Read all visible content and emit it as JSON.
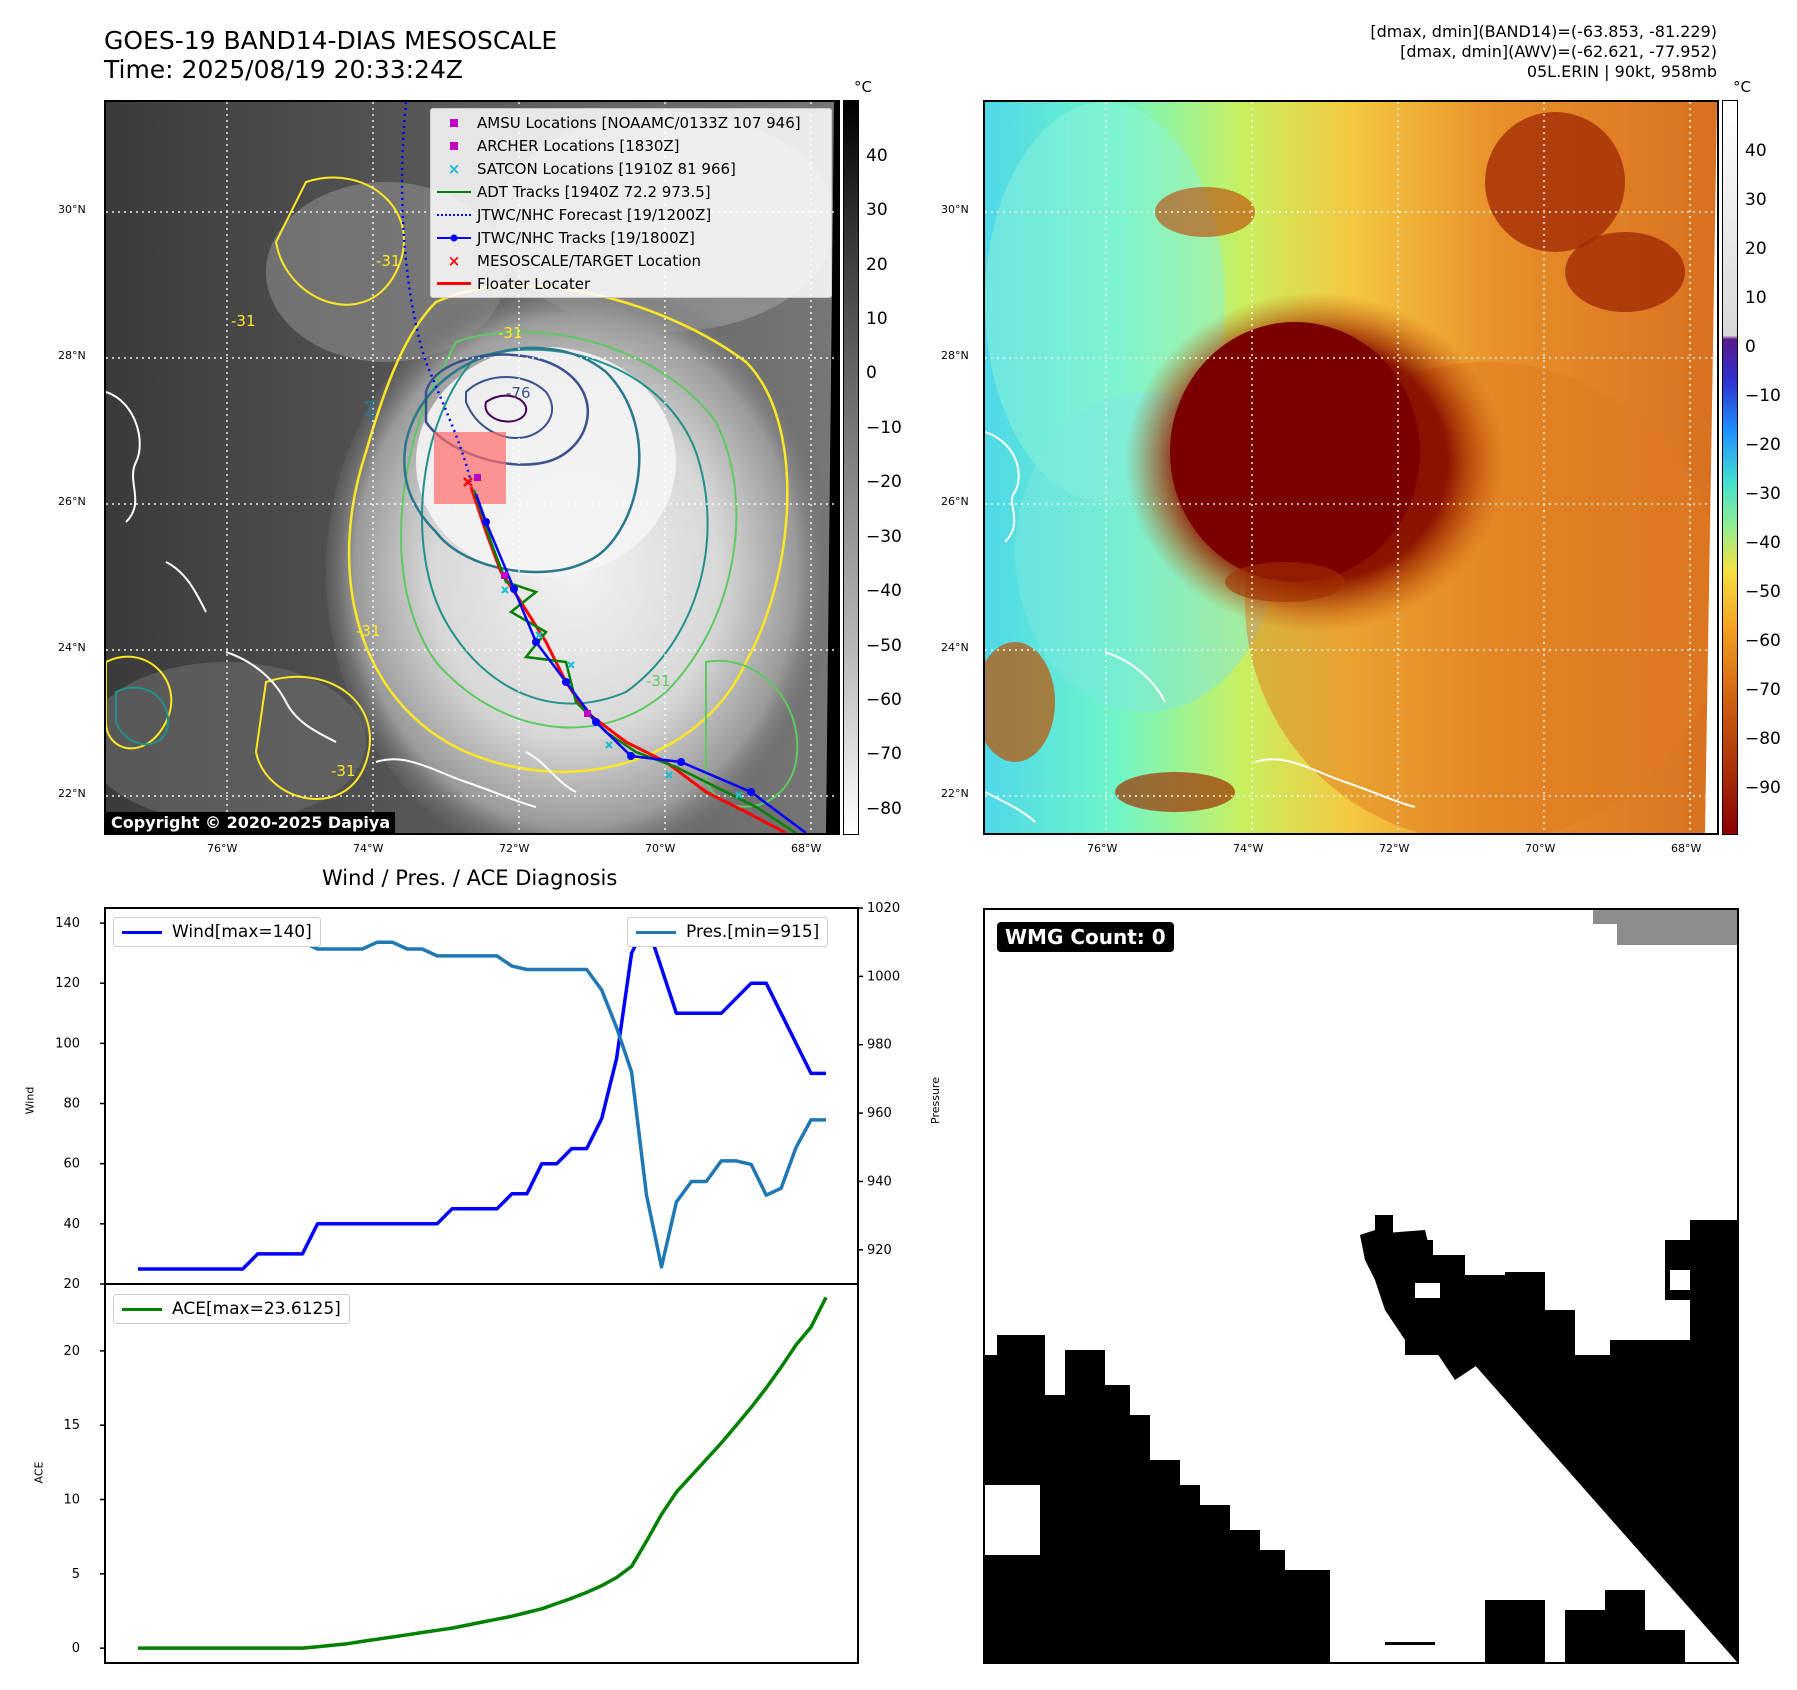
{
  "header": {
    "title_line1": "GOES-19 BAND14-DIAS MESOSCALE",
    "title_line2": "Time: 2025/08/19 20:33:24Z",
    "info_line1": "[dmax, dmin](BAND14)=(-63.853, -81.229)",
    "info_line2": "[dmax, dmin](AWV)=(-62.621, -77.952)",
    "info_line3": "05L.ERIN | 90kt, 958mb"
  },
  "maps": {
    "lat_labels": [
      "30°N",
      "28°N",
      "26°N",
      "24°N",
      "22°N"
    ],
    "lon_labels": [
      "76°W",
      "74°W",
      "72°W",
      "70°W",
      "68°W"
    ],
    "copyright": "Copyright © 2020-2025 Dapiya",
    "contour_labels": [
      "-31",
      "-31",
      "-64",
      "-76",
      "-31",
      "-31",
      "-31",
      "-31"
    ],
    "left_colorbar": {
      "unit": "°C",
      "ticks": [
        "40",
        "30",
        "20",
        "10",
        "0",
        "−10",
        "−20",
        "−30",
        "−40",
        "−50",
        "−60",
        "−70",
        "−80"
      ]
    },
    "right_colorbar": {
      "unit": "°C",
      "ticks": [
        "40",
        "30",
        "20",
        "10",
        "0",
        "−10",
        "−20",
        "−30",
        "−40",
        "−50",
        "−60",
        "−70",
        "−80",
        "−90"
      ]
    },
    "legend": [
      {
        "label": "AMSU Locations [NOAAMC/0133Z 107 946]",
        "symbol": "square",
        "color": "#c000c0"
      },
      {
        "label": "ARCHER Locations [1830Z]",
        "symbol": "square",
        "color": "#c000c0"
      },
      {
        "label": "SATCON Locations [1910Z 81 966]",
        "symbol": "x",
        "color": "#17becf"
      },
      {
        "label": "ADT Tracks [1940Z 72.2 973.5]",
        "symbol": "line",
        "color": "#008000"
      },
      {
        "label": "JTWC/NHC Forecast [19/1200Z]",
        "symbol": "dotted",
        "color": "#0000ff"
      },
      {
        "label": "JTWC/NHC Tracks [19/1800Z]",
        "symbol": "line-dot",
        "color": "#0000ff"
      },
      {
        "label": "MESOSCALE/TARGET Location",
        "symbol": "x",
        "color": "#ff0000"
      },
      {
        "label": "Floater Locater",
        "symbol": "line",
        "color": "#ff0000"
      }
    ]
  },
  "diagnosis": {
    "title": "Wind / Pres. / ACE Diagnosis",
    "wind_legend": "Wind[max=140]",
    "pres_legend": "Pres.[min=915]",
    "ace_legend": "ACE[max=23.6125]",
    "wind_ylabel": "Wind",
    "pres_ylabel": "Pressure",
    "ace_ylabel": "ACE",
    "colors": {
      "wind": "#0000ff",
      "pres": "#1f77b4",
      "ace": "#008000"
    }
  },
  "wmg": {
    "label": "WMG Count: 0"
  },
  "chart_data": [
    {
      "type": "line",
      "title": "Wind / Pres. / ACE Diagnosis",
      "ylabel": "Wind",
      "ylim": [
        20,
        145
      ],
      "y2label": "Pressure",
      "y2lim": [
        910,
        1020
      ],
      "x": [
        0,
        1,
        2,
        3,
        4,
        5,
        6,
        7,
        8,
        9,
        10,
        11,
        12,
        13,
        14,
        15,
        16,
        17,
        18,
        19,
        20,
        21,
        22,
        23,
        24,
        25,
        26,
        27,
        28,
        29,
        30,
        31,
        32,
        33,
        34,
        35,
        36,
        37,
        38,
        39,
        40,
        41,
        42,
        43,
        44,
        45,
        46
      ],
      "series": [
        {
          "name": "Wind[max=140]",
          "values": [
            25,
            25,
            25,
            25,
            25,
            25,
            25,
            25,
            30,
            30,
            30,
            30,
            40,
            40,
            40,
            40,
            40,
            40,
            40,
            40,
            40,
            45,
            45,
            45,
            45,
            50,
            50,
            60,
            60,
            65,
            65,
            75,
            95,
            130,
            140,
            125,
            110,
            110,
            110,
            110,
            115,
            120,
            120,
            110,
            100,
            90,
            90
          ]
        },
        {
          "name": "Pres.[min=915]",
          "values": [
            1016,
            1016,
            1012,
            1011,
            1010,
            1010,
            1010,
            1010,
            1010,
            1010,
            1010,
            1010,
            1008,
            1008,
            1008,
            1008,
            1010,
            1010,
            1008,
            1008,
            1006,
            1006,
            1006,
            1006,
            1006,
            1003,
            1002,
            1002,
            1002,
            1002,
            1002,
            996,
            985,
            972,
            936,
            915,
            934,
            940,
            940,
            946,
            946,
            945,
            936,
            938,
            950,
            958,
            958
          ]
        }
      ]
    },
    {
      "type": "area",
      "ylabel": "ACE",
      "ylim": [
        -1,
        24.5
      ],
      "x": [
        0,
        1,
        2,
        3,
        4,
        5,
        6,
        7,
        8,
        9,
        10,
        11,
        12,
        13,
        14,
        15,
        16,
        17,
        18,
        19,
        20,
        21,
        22,
        23,
        24,
        25,
        26,
        27,
        28,
        29,
        30,
        31,
        32,
        33,
        34,
        35,
        36,
        37,
        38,
        39,
        40,
        41,
        42,
        43,
        44,
        45,
        46
      ],
      "series": [
        {
          "name": "ACE[max=23.6125]",
          "values": [
            0,
            0,
            0,
            0,
            0,
            0,
            0,
            0,
            0,
            0,
            0,
            0,
            0.1,
            0.2,
            0.3,
            0.45,
            0.6,
            0.75,
            0.9,
            1.05,
            1.2,
            1.35,
            1.55,
            1.75,
            1.95,
            2.15,
            2.4,
            2.65,
            3.0,
            3.35,
            3.75,
            4.2,
            4.75,
            5.5,
            7.2,
            9.0,
            10.5,
            11.6,
            12.7,
            13.8,
            15.0,
            16.2,
            17.5,
            18.9,
            20.4,
            21.6,
            23.6
          ]
        }
      ]
    }
  ]
}
